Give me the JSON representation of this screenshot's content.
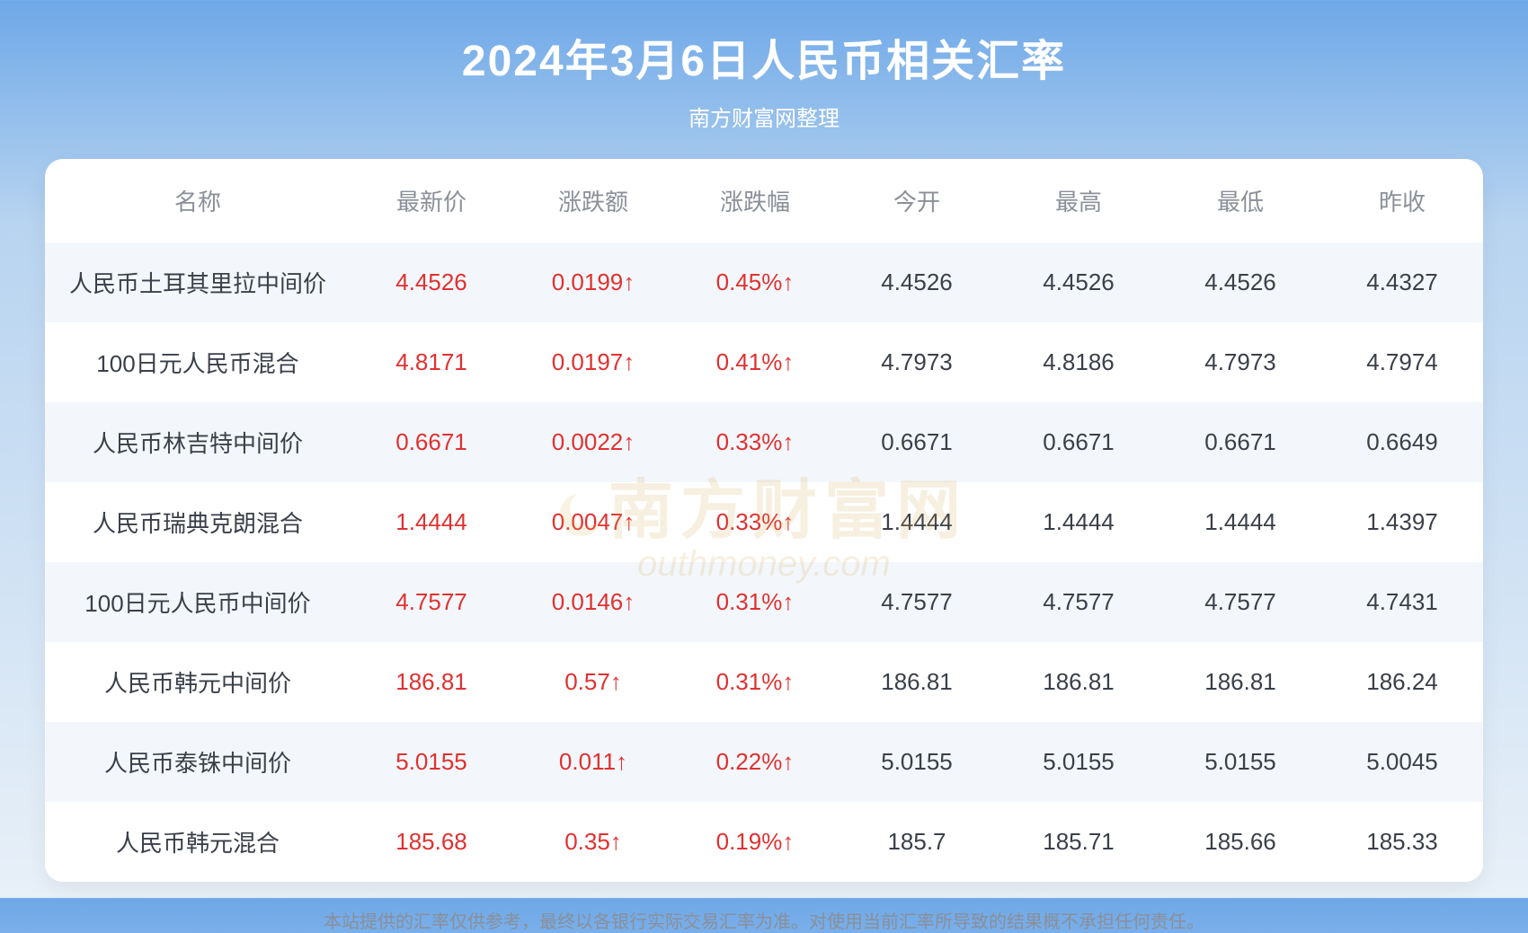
{
  "header": {
    "title": "2024年3月6日人民币相关汇率",
    "subtitle": "南方财富网整理"
  },
  "table": {
    "columns": [
      "名称",
      "最新价",
      "涨跌额",
      "涨跌幅",
      "今开",
      "最高",
      "最低",
      "昨收"
    ],
    "rows": [
      {
        "name": "人民币土耳其里拉中间价",
        "latest": "4.4526",
        "change": "0.0199↑",
        "pct": "0.45%↑",
        "open": "4.4526",
        "high": "4.4526",
        "low": "4.4526",
        "prev": "4.4327",
        "up": true
      },
      {
        "name": "100日元人民币混合",
        "latest": "4.8171",
        "change": "0.0197↑",
        "pct": "0.41%↑",
        "open": "4.7973",
        "high": "4.8186",
        "low": "4.7973",
        "prev": "4.7974",
        "up": true
      },
      {
        "name": "人民币林吉特中间价",
        "latest": "0.6671",
        "change": "0.0022↑",
        "pct": "0.33%↑",
        "open": "0.6671",
        "high": "0.6671",
        "low": "0.6671",
        "prev": "0.6649",
        "up": true
      },
      {
        "name": "人民币瑞典克朗混合",
        "latest": "1.4444",
        "change": "0.0047↑",
        "pct": "0.33%↑",
        "open": "1.4444",
        "high": "1.4444",
        "low": "1.4444",
        "prev": "1.4397",
        "up": true
      },
      {
        "name": "100日元人民币中间价",
        "latest": "4.7577",
        "change": "0.0146↑",
        "pct": "0.31%↑",
        "open": "4.7577",
        "high": "4.7577",
        "low": "4.7577",
        "prev": "4.7431",
        "up": true
      },
      {
        "name": "人民币韩元中间价",
        "latest": "186.81",
        "change": "0.57↑",
        "pct": "0.31%↑",
        "open": "186.81",
        "high": "186.81",
        "low": "186.81",
        "prev": "186.24",
        "up": true
      },
      {
        "name": "人民币泰铢中间价",
        "latest": "5.0155",
        "change": "0.011↑",
        "pct": "0.22%↑",
        "open": "5.0155",
        "high": "5.0155",
        "low": "5.0155",
        "prev": "5.0045",
        "up": true
      },
      {
        "name": "人民币韩元混合",
        "latest": "185.68",
        "change": "0.35↑",
        "pct": "0.19%↑",
        "open": "185.7",
        "high": "185.71",
        "low": "185.66",
        "prev": "185.33",
        "up": true
      }
    ]
  },
  "watermark": {
    "cn": "南方财富网",
    "en": "outhmoney.com"
  },
  "disclaimer": "本站提供的汇率仅供参考，最终以各银行实际交易汇率为准。对使用当前汇率所导致的结果概不承担任何责任。",
  "colors": {
    "header_bg_top": "#6ea8e8",
    "header_bg_bottom": "#e8f0f8",
    "title_text": "#ffffff",
    "header_cell_text": "#8a8f99",
    "body_text": "#3a3f4a",
    "up_color": "#e03131",
    "row_alt_bg": "#f3f7fb",
    "row_bg": "#ffffff",
    "watermark_color": "#d4a853",
    "disclaimer_text": "#8a8f99"
  },
  "typography": {
    "title_fontsize": 48,
    "subtitle_fontsize": 24,
    "th_fontsize": 26,
    "td_fontsize": 26,
    "disclaimer_fontsize": 20
  }
}
